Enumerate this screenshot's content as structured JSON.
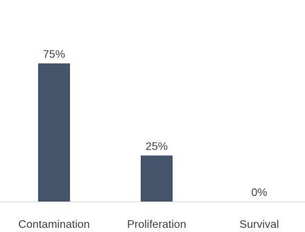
{
  "chart_data": {
    "type": "bar",
    "title": "",
    "xlabel": "",
    "ylabel": "",
    "categories": [
      "Contamination",
      "Proliferation",
      "Survival"
    ],
    "values": [
      75,
      25,
      0
    ],
    "value_labels": [
      "75%",
      "25%",
      "0%"
    ],
    "ylim": [
      0,
      100
    ],
    "grid": false,
    "legend": "none",
    "colors": {
      "bar": "#44546a",
      "axis": "#d9d9d9",
      "text": "#404040",
      "background": "#ffffff"
    }
  }
}
